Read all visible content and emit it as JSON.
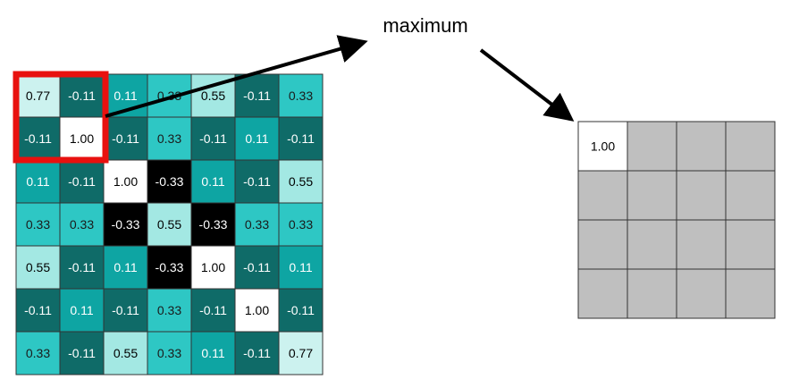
{
  "caption": "maximum",
  "input_grid": [
    [
      "0.77",
      "-0.11",
      "0.11",
      "0.33",
      "0.55",
      "-0.11",
      "0.33"
    ],
    [
      "-0.11",
      "1.00",
      "-0.11",
      "0.33",
      "-0.11",
      "0.11",
      "-0.11"
    ],
    [
      "0.11",
      "-0.11",
      "1.00",
      "-0.33",
      "0.11",
      "-0.11",
      "0.55"
    ],
    [
      "0.33",
      "0.33",
      "-0.33",
      "0.55",
      "-0.33",
      "0.33",
      "0.33"
    ],
    [
      "0.55",
      "-0.11",
      "0.11",
      "-0.33",
      "1.00",
      "-0.11",
      "0.11"
    ],
    [
      "-0.11",
      "0.11",
      "-0.11",
      "0.33",
      "-0.11",
      "1.00",
      "-0.11"
    ],
    [
      "0.33",
      "-0.11",
      "0.55",
      "0.33",
      "0.11",
      "-0.11",
      "0.77"
    ]
  ],
  "output_grid": [
    [
      "1.00",
      "",
      "",
      ""
    ],
    [
      "",
      "",
      "",
      ""
    ],
    [
      "",
      "",
      "",
      ""
    ],
    [
      "",
      "",
      "",
      ""
    ]
  ],
  "colors": {
    "v_1_00": "#ffffff",
    "v_0_77": "#ccf2ef",
    "v_0_55": "#a3e8e3",
    "v_0_33": "#2ec7c4",
    "v_0_11": "#0ea5a3",
    "v_m0_11": "#0f6b68",
    "v_m0_33": "#000000",
    "empty": "#bfbfbf",
    "highlight": "#e8110f",
    "grid_line": "#333333"
  }
}
